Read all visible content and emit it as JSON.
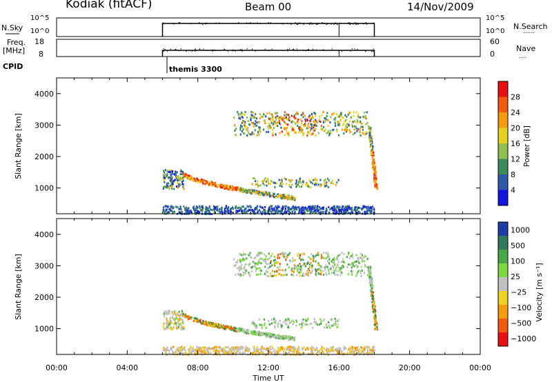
{
  "header": {
    "station": "Kodiak (fitACF)",
    "beam": "Beam 00",
    "date": "14/Nov/2009"
  },
  "nsky_panel": {
    "left_label": "N.Sky",
    "left_ticks": [
      "10^5",
      "10^0"
    ],
    "right_ticks": [
      "10^5",
      "10^0"
    ],
    "right_label": "N.Search",
    "right_legend": "......"
  },
  "freq_panel": {
    "left_label_1": "Freq.",
    "left_label_2": "[MHz]",
    "left_ticks": [
      "18",
      "8"
    ],
    "right_ticks": [
      "60",
      "0"
    ],
    "right_label": "Nave",
    "right_legend": "...."
  },
  "cpid": {
    "label": "CPID",
    "mode": "themis 3300"
  },
  "x_ticks": [
    "00:00",
    "04:00",
    "08:00",
    "12:00",
    "16:00",
    "20:00",
    "00:00"
  ],
  "x_axis_label": "Time UT",
  "chart_data": [
    {
      "type": "heatmap",
      "panel": "power",
      "ylabel": "Slant Range [km]",
      "y_ticks": [
        1000,
        2000,
        3000,
        4000
      ],
      "ylim": [
        180,
        4500
      ],
      "xlim_hours": [
        0,
        24
      ],
      "data_window_hours": [
        6,
        18
      ],
      "colorbar": {
        "label": "Power [dB]",
        "ticks": [
          "28",
          "24",
          "20",
          "16",
          "12",
          "8",
          "4"
        ],
        "colors": [
          "#e81010",
          "#f25a10",
          "#f59b10",
          "#e8d020",
          "#90c050",
          "#3c8c5a",
          "#2a5aa8",
          "#1414e0"
        ]
      },
      "features": [
        {
          "name": "ground scatter band",
          "t_start": 6.0,
          "t_end": 18.0,
          "range_km": [
            200,
            450
          ],
          "level": "low"
        },
        {
          "name": "descending E-region trace",
          "t_start": 7.0,
          "t_end": 13.5,
          "range_km_start": 1550,
          "range_km_end": 700,
          "level": "high"
        },
        {
          "name": "F-region patch",
          "t_start": 10.0,
          "t_end": 17.6,
          "range_km": [
            2700,
            3450
          ],
          "level": "mid"
        },
        {
          "name": "late rising echo",
          "t_start": 17.6,
          "t_end": 18.0,
          "range_km": [
            1000,
            3000
          ],
          "level": "high"
        }
      ]
    },
    {
      "type": "heatmap",
      "panel": "velocity",
      "ylabel": "Slant Range [km]",
      "y_ticks": [
        1000,
        2000,
        3000,
        4000
      ],
      "ylim": [
        180,
        4500
      ],
      "xlim_hours": [
        0,
        24
      ],
      "data_window_hours": [
        6,
        18
      ],
      "colorbar": {
        "label": "Velocity [m s⁻¹]",
        "ticks": [
          "1000",
          "500",
          "100",
          "25",
          "−25",
          "−100",
          "−500",
          "−1000"
        ],
        "colors": [
          "#1c3ca8",
          "#2f7a5a",
          "#46a846",
          "#7ed840",
          "#c0c0c0",
          "#f0d020",
          "#f59b10",
          "#f25a10",
          "#e81010"
        ]
      }
    }
  ]
}
